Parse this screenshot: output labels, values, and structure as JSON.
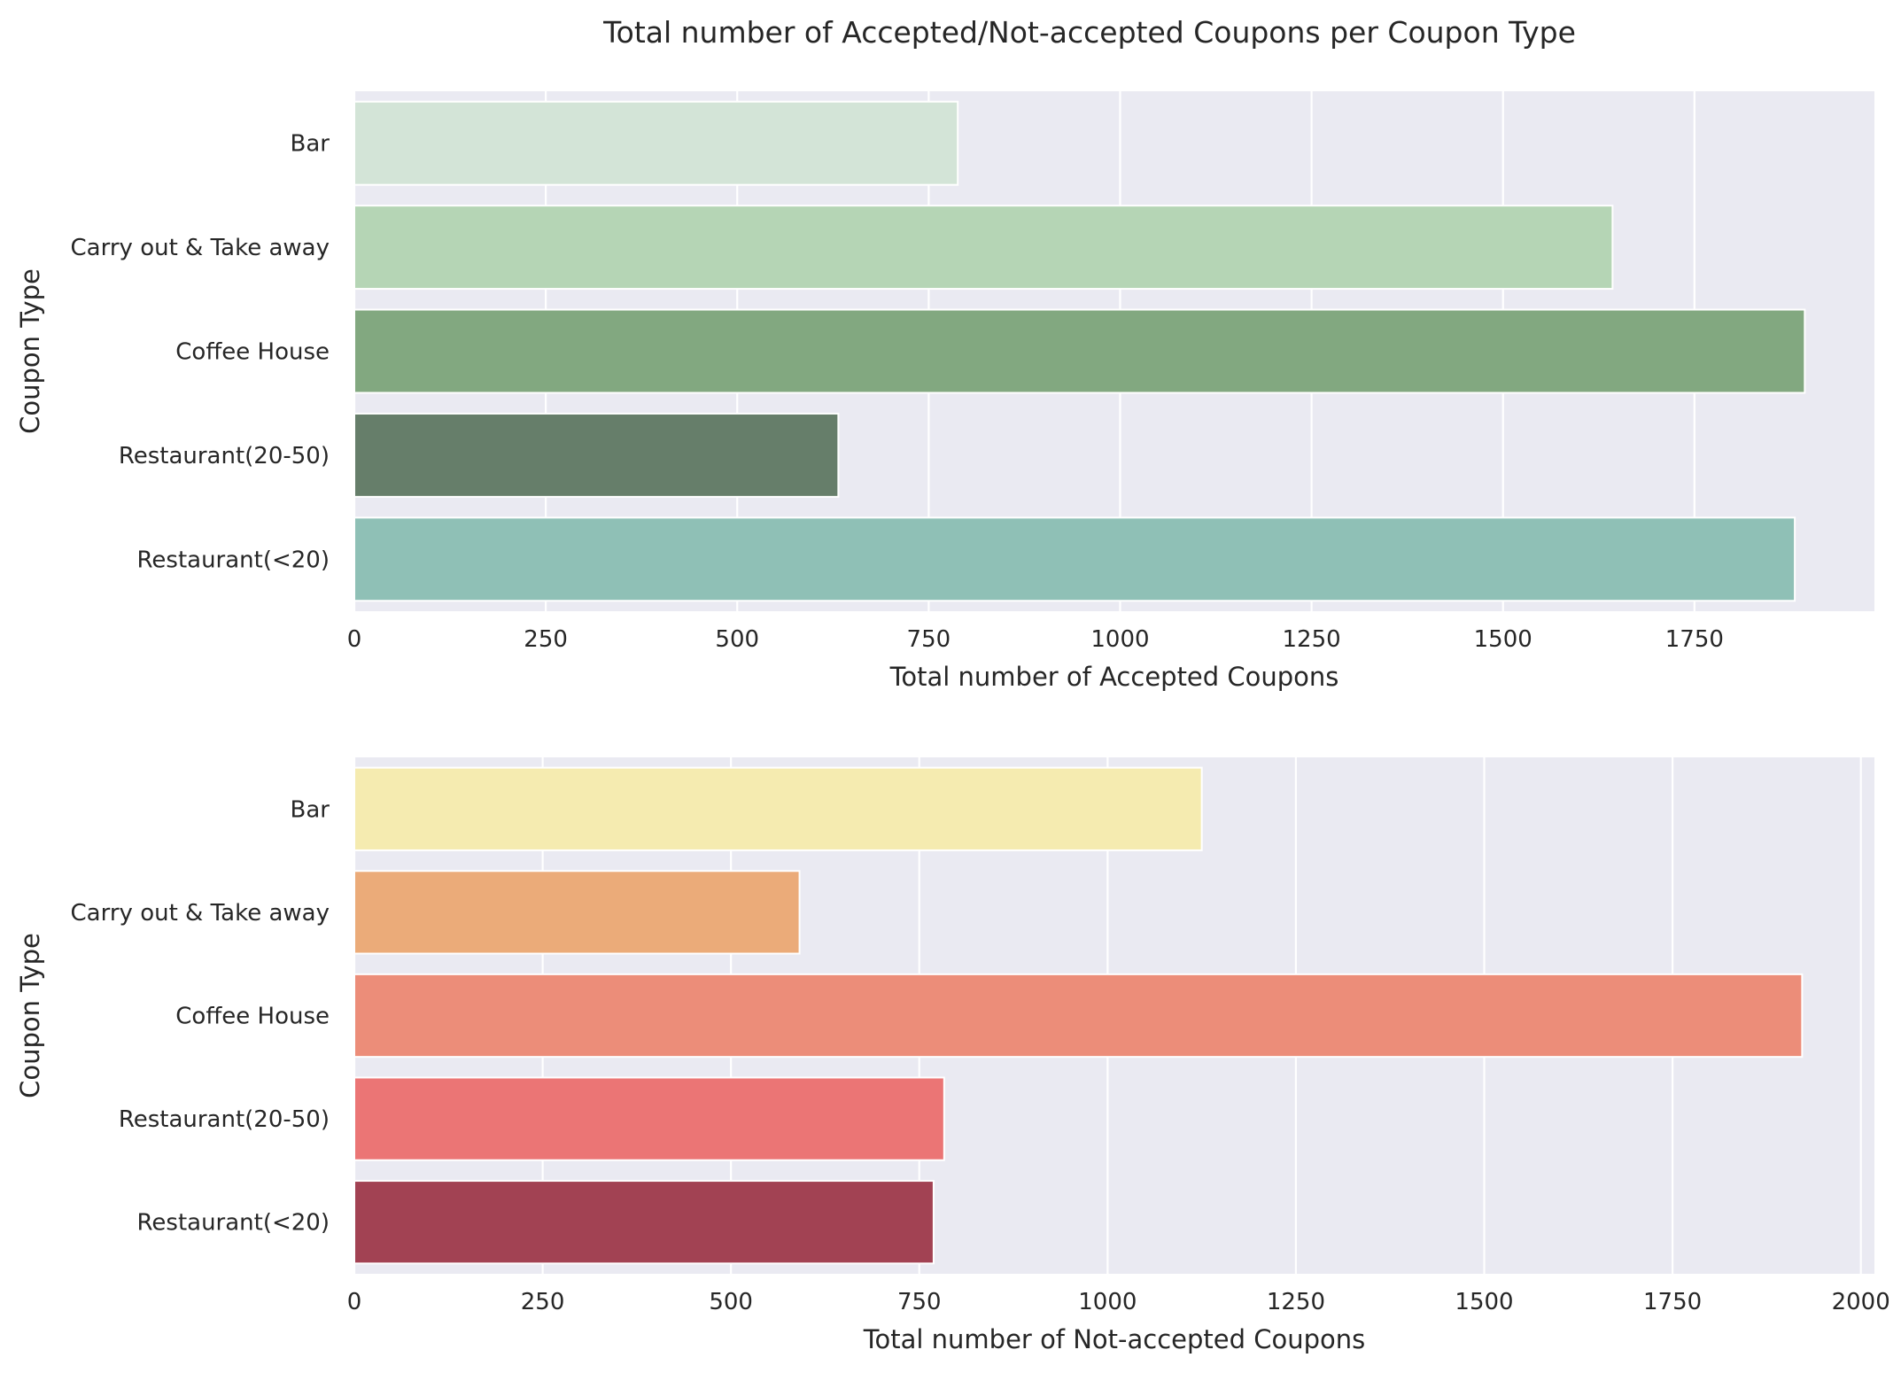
{
  "title": "Total number of Accepted/Not-accepted Coupons per Coupon Type",
  "chart_data": [
    {
      "type": "bar",
      "orientation": "horizontal",
      "categories": [
        "Bar",
        "Carry out & Take away",
        "Coffee House",
        "Restaurant(20-50)",
        "Restaurant(<20)"
      ],
      "values": [
        788,
        1643,
        1894,
        632,
        1881
      ],
      "colors": [
        "#d3e4d7",
        "#b5d5b5",
        "#82a880",
        "#667e6a",
        "#8fc0b6"
      ],
      "xlabel": "Total number of Accepted Coupons",
      "ylabel": "Coupon Type",
      "xlim": [
        0,
        1985
      ],
      "xticks": [
        0,
        250,
        500,
        750,
        1000,
        1250,
        1500,
        1750
      ],
      "grid": true
    },
    {
      "type": "bar",
      "orientation": "horizontal",
      "categories": [
        "Bar",
        "Carry out & Take away",
        "Coffee House",
        "Restaurant(20-50)",
        "Restaurant(<20)"
      ],
      "values": [
        1125,
        591,
        1922,
        783,
        769
      ],
      "colors": [
        "#f5ebb0",
        "#ebab79",
        "#ec8d79",
        "#eb7575",
        "#a24253"
      ],
      "xlabel": "Total number of Not-accepted Coupons",
      "ylabel": "Coupon Type",
      "xlim": [
        0,
        2018
      ],
      "xticks": [
        0,
        250,
        500,
        750,
        1000,
        1250,
        1500,
        1750,
        2000
      ],
      "grid": true
    }
  ]
}
